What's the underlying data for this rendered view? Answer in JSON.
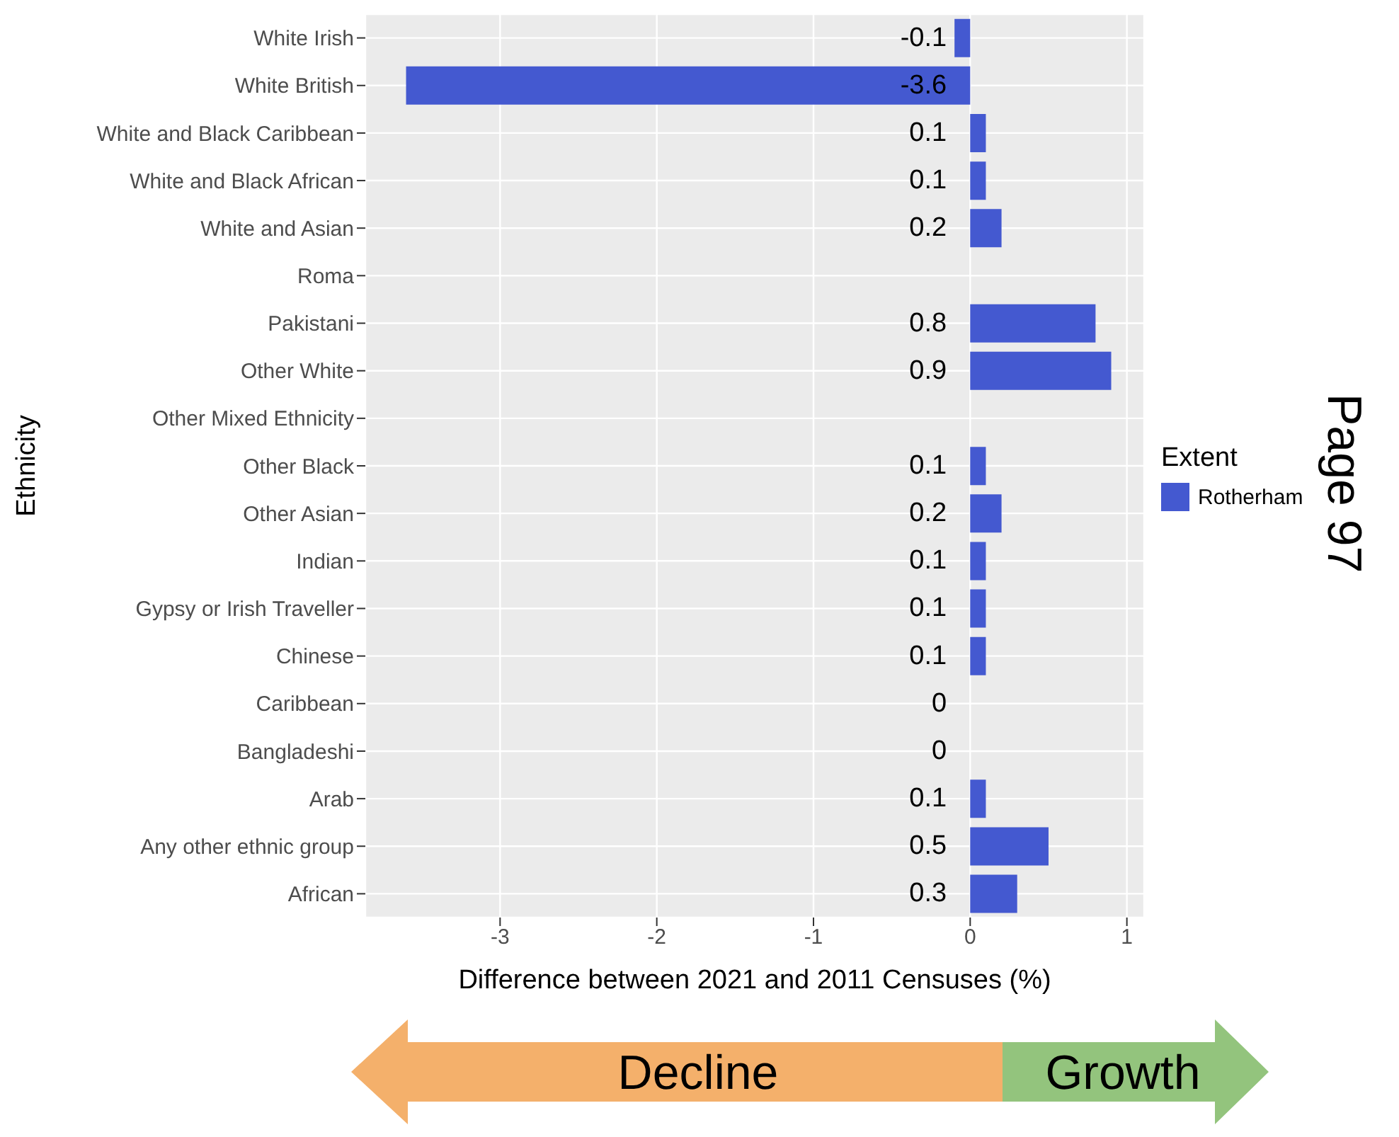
{
  "chart_data": {
    "type": "bar",
    "orientation": "horizontal",
    "xlabel": "Difference between 2021 and 2011 Censuses (%)",
    "ylabel": "Ethnicity",
    "legend_title": "Extent",
    "categories": [
      "White Irish",
      "White British",
      "White and Black Caribbean",
      "White and Black African",
      "White and Asian",
      "Roma",
      "Pakistani",
      "Other White",
      "Other Mixed Ethnicity",
      "Other Black",
      "Other Asian",
      "Indian",
      "Gypsy or Irish Traveller",
      "Chinese",
      "Caribbean",
      "Bangladeshi",
      "Arab",
      "Any other ethnic group",
      "African"
    ],
    "series": [
      {
        "name": "Rotherham",
        "color": "#4459d0",
        "values": [
          -0.1,
          -3.6,
          0.1,
          0.1,
          0.2,
          null,
          0.8,
          0.9,
          null,
          0.1,
          0.2,
          0.1,
          0.1,
          0.1,
          0,
          0,
          0.1,
          0.5,
          0.3
        ]
      }
    ],
    "xlim": [
      -3.86,
      1.11
    ],
    "xticks": [
      -3,
      -2,
      -1,
      0,
      1
    ],
    "grid": true,
    "legend": "right",
    "data_labels": true,
    "annotations": [
      "Decline",
      "Growth",
      "Page 97"
    ]
  }
}
